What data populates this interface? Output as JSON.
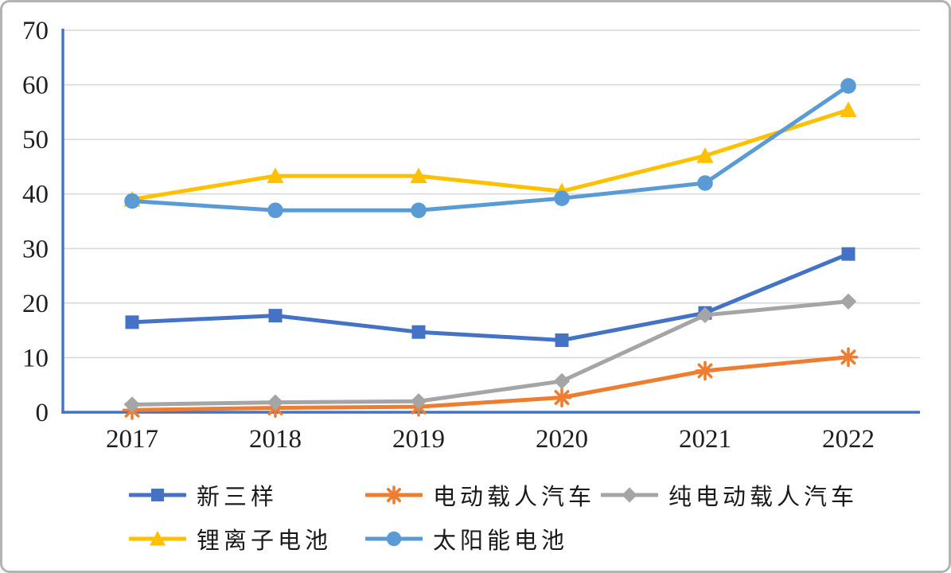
{
  "figure": {
    "background": "#ffffff",
    "border_color": "#b3b3b3"
  },
  "chart_data": {
    "type": "line",
    "title": "",
    "xlabel": "",
    "ylabel": "",
    "categories": [
      "2017",
      "2018",
      "2019",
      "2020",
      "2021",
      "2022"
    ],
    "series": [
      {
        "name": "新三样",
        "color": "#4472C4",
        "marker": "square",
        "values": [
          16.5,
          17.7,
          14.7,
          13.2,
          18.2,
          29.0
        ]
      },
      {
        "name": "电动载人汽车",
        "color": "#ED7D31",
        "marker": "xstar",
        "values": [
          0.4,
          0.8,
          1.0,
          2.7,
          7.6,
          10.1
        ]
      },
      {
        "name": "纯电动载人汽车",
        "color": "#A5A5A5",
        "marker": "diamond",
        "values": [
          1.4,
          1.8,
          2.0,
          5.7,
          17.8,
          20.3
        ]
      },
      {
        "name": "锂离子电池",
        "color": "#FFC000",
        "marker": "triangle",
        "values": [
          39.0,
          43.3,
          43.3,
          40.5,
          47.0,
          55.4
        ]
      },
      {
        "name": "太阳能电池",
        "color": "#5B9BD5",
        "marker": "circle",
        "values": [
          38.7,
          37.0,
          37.0,
          39.2,
          42.0,
          59.8
        ]
      }
    ],
    "ylim": [
      0,
      70
    ],
    "y_ticks": [
      0,
      10,
      20,
      30,
      40,
      50,
      60,
      70
    ],
    "grid": true,
    "legend_position": "bottom-left",
    "axis_color": "#4472C4",
    "gridline_color": "#d9d9d9",
    "tick_label_color": "#1f1f1f"
  }
}
